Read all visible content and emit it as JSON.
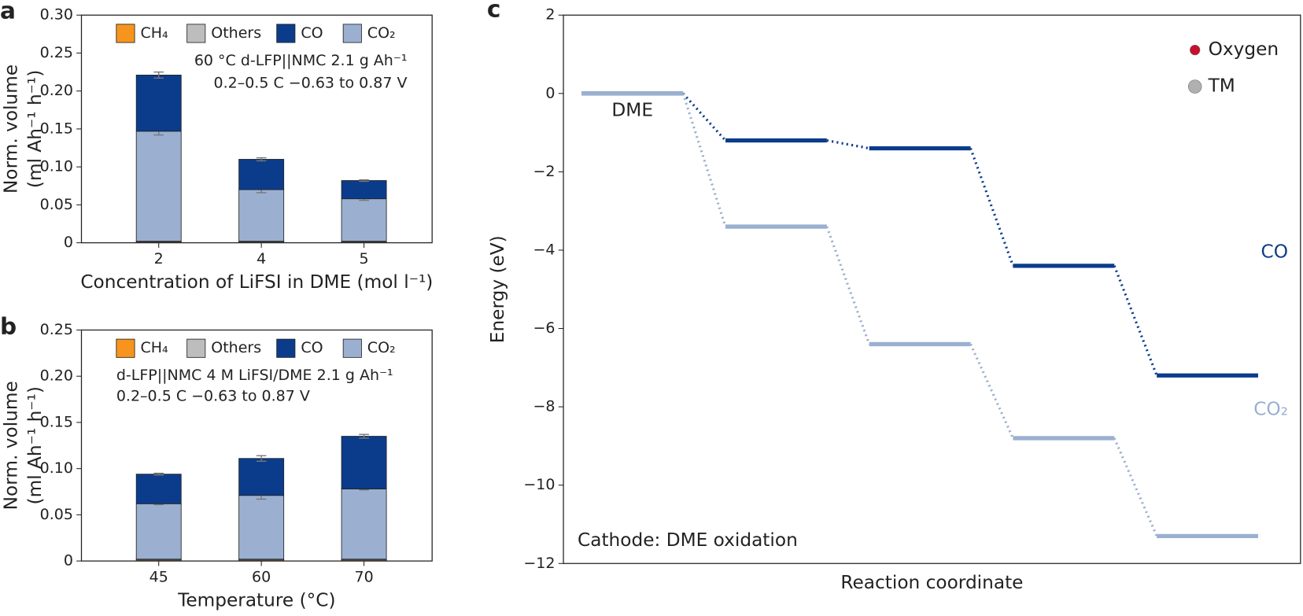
{
  "chart_data": [
    {
      "type": "stacked-bar",
      "panel": "a",
      "categories": [
        "2",
        "4",
        "5"
      ],
      "series": [
        {
          "name": "CH₄",
          "color": "#f7941d",
          "values": [
            0.001,
            0.001,
            0.001
          ]
        },
        {
          "name": "Others",
          "color": "#bdbdbd",
          "values": [
            0.001,
            0.001,
            0.001
          ]
        },
        {
          "name": "CO",
          "color": "#0b3c8c",
          "values": [
            0.074,
            0.04,
            0.024
          ],
          "errors": [
            0.004,
            0.002,
            0.001
          ]
        },
        {
          "name": "CO₂",
          "color": "#9bb0d0",
          "values": [
            0.145,
            0.068,
            0.056
          ],
          "errors": [
            0.005,
            0.004,
            0.002
          ]
        }
      ],
      "ylim": [
        0,
        0.3
      ],
      "yticks": [
        0,
        0.05,
        {
          "value": 0.1,
          "label": "0.10"
        },
        0.15,
        {
          "value": 0.2,
          "label": "0.20"
        },
        0.25,
        {
          "value": 0.3,
          "label": "0.30"
        }
      ],
      "ylabel": [
        "Norm. volume",
        "(ml Ah⁻¹ h⁻¹)"
      ],
      "xlabel": "Concentration of LiFSI in DME (mol l⁻¹)",
      "annotations": [
        "60 °C d-LFP||NMC 2.1 g Ah⁻¹",
        "0.2–0.5 C −0.63 to 0.87 V"
      ]
    },
    {
      "type": "stacked-bar",
      "panel": "b",
      "categories": [
        "45",
        "60",
        "70"
      ],
      "series": [
        {
          "name": "CH₄",
          "color": "#f7941d",
          "values": [
            0.001,
            0.001,
            0.001
          ]
        },
        {
          "name": "Others",
          "color": "#bdbdbd",
          "values": [
            0.001,
            0.001,
            0.001
          ]
        },
        {
          "name": "CO",
          "color": "#0b3c8c",
          "values": [
            0.032,
            0.04,
            0.057
          ],
          "errors": [
            0.001,
            0.003,
            0.002
          ]
        },
        {
          "name": "CO₂",
          "color": "#9bb0d0",
          "values": [
            0.06,
            0.069,
            0.076
          ],
          "errors": [
            0.001,
            0.004,
            0.001
          ]
        }
      ],
      "ylim": [
        0,
        0.25
      ],
      "yticks": [
        0,
        0.05,
        {
          "value": 0.1,
          "label": "0.10"
        },
        0.15,
        {
          "value": 0.2,
          "label": "0.20"
        },
        0.25
      ],
      "ylabel": [
        "Norm. volume",
        "(ml Ah⁻¹ h⁻¹)"
      ],
      "xlabel": "Temperature (°C)",
      "annotations": [
        "d-LFP||NMC 4 M LiFSI/DME 2.1 g Ah⁻¹",
        "0.2–0.5 C −0.63 to 0.87 V"
      ]
    },
    {
      "type": "energy-diagram",
      "panel": "c",
      "categories": [
        null,
        null,
        null,
        null,
        null
      ],
      "series": [
        {
          "name": "CO",
          "color": "#0b3c8c",
          "values": [
            0,
            -1.2,
            -1.4,
            -4.4,
            -7.2
          ]
        },
        {
          "name": "CO₂",
          "color": "#9bb0d0",
          "values": [
            0,
            -3.4,
            -6.4,
            -8.8,
            -11.3
          ]
        }
      ],
      "start_label": "DME",
      "ylim": [
        -12,
        2
      ],
      "yticks": [
        2,
        0,
        {
          "value": -2,
          "label": "−2"
        },
        {
          "value": -4,
          "label": "−4"
        },
        {
          "value": -6,
          "label": "−6"
        },
        {
          "value": -8,
          "label": "−8"
        },
        {
          "value": -10,
          "label": "−10"
        },
        {
          "value": -12,
          "label": "−12"
        }
      ],
      "ylabel": "Energy (eV)",
      "xlabel": "Reaction coordinate",
      "annotation": "Cathode: DME oxidation",
      "legend": [
        {
          "name": "Oxygen",
          "color": "#c8102e"
        },
        {
          "name": "TM",
          "color": "#b0b0b0"
        }
      ]
    }
  ]
}
